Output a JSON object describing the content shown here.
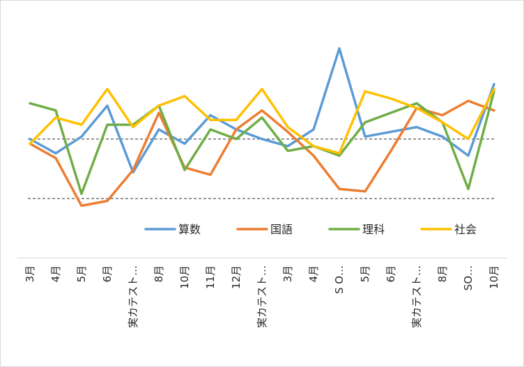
{
  "chart_data": {
    "type": "line",
    "categories": [
      "3月",
      "4月",
      "5月",
      "6月",
      "実カテスト…",
      "8月",
      "10月",
      "11月",
      "12月",
      "実カテスト…",
      "3月",
      "4月",
      "S O…",
      "5月",
      "6月",
      "実カテスト…",
      "8月",
      "SO…",
      "10月"
    ],
    "ylim": [
      0,
      100
    ],
    "reference_lines": [
      50,
      25
    ],
    "grid": false,
    "legend": "bottom",
    "series": [
      {
        "name": "算数",
        "color": "#5b9bd5",
        "values": [
          50,
          44,
          51,
          64,
          36,
          54,
          48,
          60,
          54,
          50,
          47,
          54,
          88,
          51,
          53,
          55,
          51,
          43,
          73
        ]
      },
      {
        "name": "国語",
        "color": "#ed7d31",
        "values": [
          48,
          42,
          22,
          24,
          37,
          61,
          38,
          35,
          54,
          62,
          53,
          43,
          29,
          28,
          45,
          63,
          60,
          66,
          62
        ]
      },
      {
        "name": "理科",
        "color": "#70ad47",
        "values": [
          65,
          62,
          27,
          56,
          56,
          64,
          37,
          54,
          50,
          59,
          45,
          47,
          43,
          57,
          61,
          65,
          57,
          29,
          70
        ]
      },
      {
        "name": "社会",
        "color": "#ffc000",
        "values": [
          48,
          59,
          56,
          71,
          55,
          64,
          68,
          58,
          58,
          71,
          55,
          47,
          44,
          70,
          67,
          63,
          57,
          50,
          71
        ]
      }
    ]
  }
}
